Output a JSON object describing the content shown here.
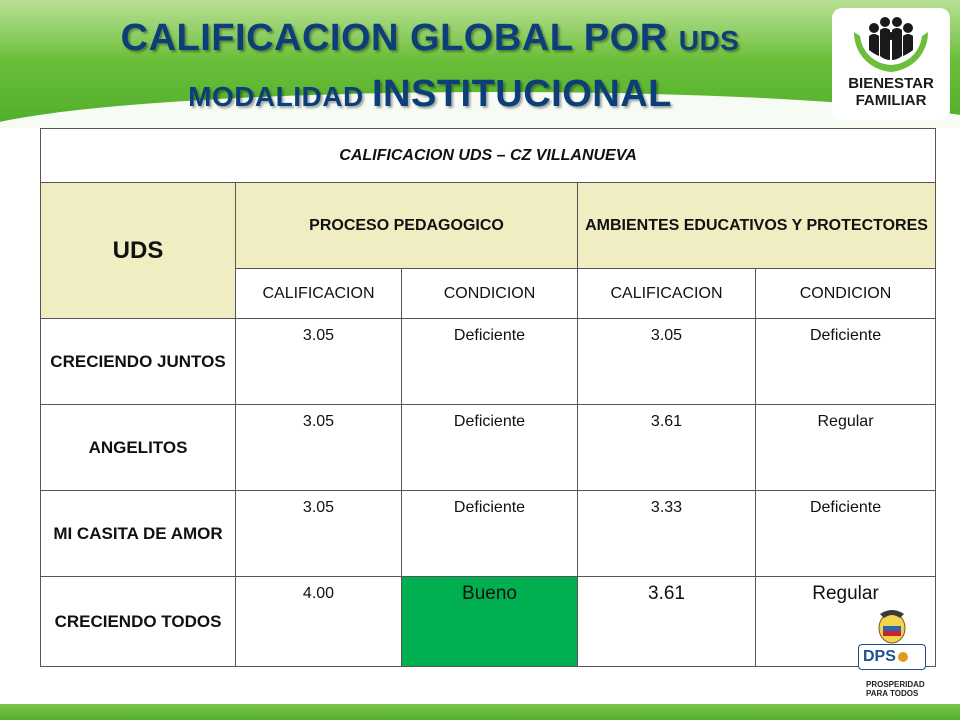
{
  "title": {
    "line1_big": "CALIFICACION GLOBAL POR ",
    "line1_small": "UDS",
    "line2_small": "MODALIDAD ",
    "line2_big": "INSTITUCIONAL"
  },
  "logo": {
    "line1": "BIENESTAR",
    "line2": "FAMILIAR"
  },
  "table": {
    "caption": "CALIFICACION UDS – CZ VILLANUEVA",
    "uds_header": "UDS",
    "group_headers": [
      "PROCESO PEDAGOGICO",
      "AMBIENTES EDUCATIVOS Y PROTECTORES"
    ],
    "sub_headers": [
      "CALIFICACION",
      "CONDICION",
      "CALIFICACION",
      "CONDICION"
    ],
    "rows": [
      {
        "name": "CRECIENDO JUNTOS",
        "pp_score": "3.05",
        "pp_condition": "Deficiente",
        "ae_score": "3.05",
        "ae_condition": "Deficiente"
      },
      {
        "name": "ANGELITOS",
        "pp_score": "3.05",
        "pp_condition": "Deficiente",
        "ae_score": "3.61",
        "ae_condition": "Regular"
      },
      {
        "name": "MI CASITA DE AMOR",
        "pp_score": "3.05",
        "pp_condition": "Deficiente",
        "ae_score": "3.33",
        "ae_condition": "Deficiente"
      },
      {
        "name": "CRECIENDO TODOS",
        "pp_score": "4.00",
        "pp_condition": "Bueno",
        "ae_score": "3.61",
        "ae_condition": "Regular"
      }
    ]
  },
  "footer": {
    "dps": "DPS",
    "prosperidad_1": "PROSPERIDAD",
    "prosperidad_2": "PARA TODOS"
  },
  "colors": {
    "header_green": "#6cbf3a",
    "title_blue": "#0c3f7a",
    "header_cell": "#f1edc2",
    "good_cell": "#00b050"
  }
}
